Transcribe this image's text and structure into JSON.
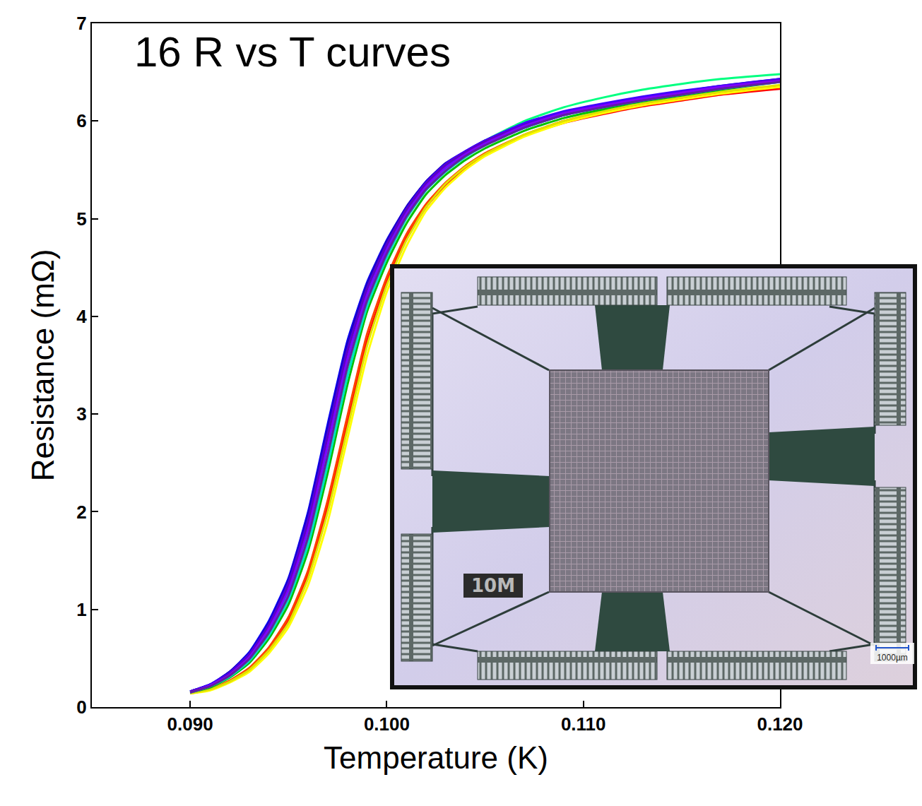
{
  "chart_data": {
    "type": "line",
    "title": "16 R vs T curves",
    "x_label": "Temperature (K)",
    "y_label": "Resistance (mΩ)",
    "x": [
      0.09,
      0.091,
      0.092,
      0.093,
      0.094,
      0.095,
      0.096,
      0.097,
      0.098,
      0.099,
      0.1,
      0.101,
      0.102,
      0.103,
      0.104,
      0.105,
      0.107,
      0.109,
      0.111,
      0.113,
      0.115,
      0.117,
      0.12
    ],
    "series": [
      {
        "color": "#ff0000",
        "values": [
          0.14,
          0.18,
          0.26,
          0.38,
          0.58,
          0.88,
          1.35,
          2.05,
          2.9,
          3.75,
          4.35,
          4.8,
          5.12,
          5.35,
          5.52,
          5.65,
          5.85,
          5.98,
          6.07,
          6.15,
          6.21,
          6.27,
          6.33
        ]
      },
      {
        "color": "#ff4000",
        "values": [
          0.14,
          0.18,
          0.27,
          0.4,
          0.61,
          0.92,
          1.4,
          2.12,
          2.98,
          3.82,
          4.4,
          4.84,
          5.15,
          5.37,
          5.54,
          5.67,
          5.86,
          6.0,
          6.09,
          6.17,
          6.23,
          6.29,
          6.36
        ]
      },
      {
        "color": "#ffff00",
        "values": [
          0.14,
          0.17,
          0.25,
          0.36,
          0.55,
          0.82,
          1.25,
          1.9,
          2.75,
          3.6,
          4.25,
          4.72,
          5.08,
          5.32,
          5.5,
          5.64,
          5.84,
          5.98,
          6.08,
          6.16,
          6.22,
          6.28,
          6.35
        ]
      },
      {
        "color": "#e0e000",
        "values": [
          0.14,
          0.18,
          0.26,
          0.38,
          0.58,
          0.86,
          1.32,
          2.0,
          2.85,
          3.7,
          4.32,
          4.78,
          5.12,
          5.36,
          5.53,
          5.66,
          5.86,
          6.0,
          6.1,
          6.18,
          6.24,
          6.3,
          6.37
        ]
      },
      {
        "color": "#00c000",
        "values": [
          0.15,
          0.2,
          0.3,
          0.45,
          0.7,
          1.05,
          1.6,
          2.4,
          3.3,
          4.05,
          4.55,
          4.95,
          5.25,
          5.45,
          5.6,
          5.72,
          5.9,
          6.03,
          6.12,
          6.2,
          6.26,
          6.32,
          6.4
        ]
      },
      {
        "color": "#00ff80",
        "values": [
          0.15,
          0.21,
          0.32,
          0.48,
          0.74,
          1.1,
          1.68,
          2.5,
          3.4,
          4.12,
          4.62,
          5.02,
          5.32,
          5.52,
          5.68,
          5.8,
          6.0,
          6.14,
          6.24,
          6.32,
          6.38,
          6.43,
          6.48
        ]
      },
      {
        "color": "#00e0c0",
        "values": [
          0.15,
          0.21,
          0.31,
          0.47,
          0.73,
          1.1,
          1.66,
          2.48,
          3.38,
          4.1,
          4.6,
          5.0,
          5.29,
          5.48,
          5.63,
          5.75,
          5.93,
          6.06,
          6.15,
          6.23,
          6.29,
          6.35,
          6.42
        ]
      },
      {
        "color": "#00c0ff",
        "values": [
          0.16,
          0.22,
          0.33,
          0.5,
          0.78,
          1.18,
          1.78,
          2.62,
          3.52,
          4.2,
          4.66,
          5.04,
          5.32,
          5.51,
          5.65,
          5.76,
          5.93,
          6.06,
          6.14,
          6.21,
          6.27,
          6.33,
          6.4
        ]
      },
      {
        "color": "#0080ff",
        "values": [
          0.16,
          0.22,
          0.34,
          0.52,
          0.81,
          1.22,
          1.84,
          2.7,
          3.58,
          4.24,
          4.7,
          5.06,
          5.34,
          5.53,
          5.66,
          5.77,
          5.94,
          6.06,
          6.15,
          6.22,
          6.28,
          6.34,
          6.41
        ]
      },
      {
        "color": "#0040ff",
        "values": [
          0.16,
          0.23,
          0.35,
          0.54,
          0.85,
          1.28,
          1.93,
          2.82,
          3.68,
          4.3,
          4.74,
          5.1,
          5.36,
          5.55,
          5.67,
          5.78,
          5.95,
          6.07,
          6.15,
          6.22,
          6.28,
          6.34,
          6.41
        ]
      },
      {
        "color": "#0000ff",
        "values": [
          0.16,
          0.23,
          0.36,
          0.56,
          0.88,
          1.32,
          2.0,
          2.9,
          3.75,
          4.35,
          4.78,
          5.12,
          5.38,
          5.56,
          5.68,
          5.78,
          5.95,
          6.07,
          6.15,
          6.22,
          6.28,
          6.34,
          6.42
        ]
      },
      {
        "color": "#2000c0",
        "values": [
          0.16,
          0.23,
          0.36,
          0.55,
          0.86,
          1.3,
          1.97,
          2.86,
          3.72,
          4.33,
          4.77,
          5.12,
          5.38,
          5.57,
          5.69,
          5.8,
          5.97,
          6.09,
          6.17,
          6.24,
          6.3,
          6.36,
          6.43
        ]
      },
      {
        "color": "#4000ff",
        "values": [
          0.16,
          0.23,
          0.35,
          0.54,
          0.84,
          1.27,
          1.92,
          2.8,
          3.66,
          4.29,
          4.74,
          5.1,
          5.37,
          5.56,
          5.69,
          5.8,
          5.98,
          6.1,
          6.18,
          6.25,
          6.31,
          6.36,
          6.43
        ]
      },
      {
        "color": "#6000c0",
        "values": [
          0.16,
          0.22,
          0.34,
          0.53,
          0.83,
          1.25,
          1.89,
          2.77,
          3.64,
          4.28,
          4.73,
          5.09,
          5.36,
          5.55,
          5.68,
          5.79,
          5.96,
          6.08,
          6.16,
          6.23,
          6.29,
          6.35,
          6.42
        ]
      },
      {
        "color": "#8000ff",
        "values": [
          0.15,
          0.22,
          0.33,
          0.51,
          0.8,
          1.2,
          1.82,
          2.68,
          3.56,
          4.22,
          4.68,
          5.05,
          5.33,
          5.52,
          5.66,
          5.77,
          5.95,
          6.08,
          6.16,
          6.23,
          6.29,
          6.35,
          6.41
        ]
      },
      {
        "color": "#6020a0",
        "values": [
          0.15,
          0.21,
          0.32,
          0.49,
          0.76,
          1.14,
          1.74,
          2.58,
          3.48,
          4.16,
          4.64,
          5.02,
          5.3,
          5.49,
          5.64,
          5.75,
          5.93,
          6.06,
          6.14,
          6.21,
          6.27,
          6.33,
          6.4
        ]
      }
    ],
    "xlim": [
      0.085,
      0.12
    ],
    "ylim": [
      0,
      7
    ],
    "xticks": [
      {
        "value": 0.09,
        "label": "0.090"
      },
      {
        "value": 0.1,
        "label": "0.100"
      },
      {
        "value": 0.11,
        "label": "0.110"
      },
      {
        "value": 0.12,
        "label": "0.120"
      }
    ],
    "yticks": [
      0,
      1,
      2,
      3,
      4,
      5,
      6,
      7
    ],
    "grid": false,
    "annotations": [
      "10M",
      "1000µm"
    ]
  }
}
